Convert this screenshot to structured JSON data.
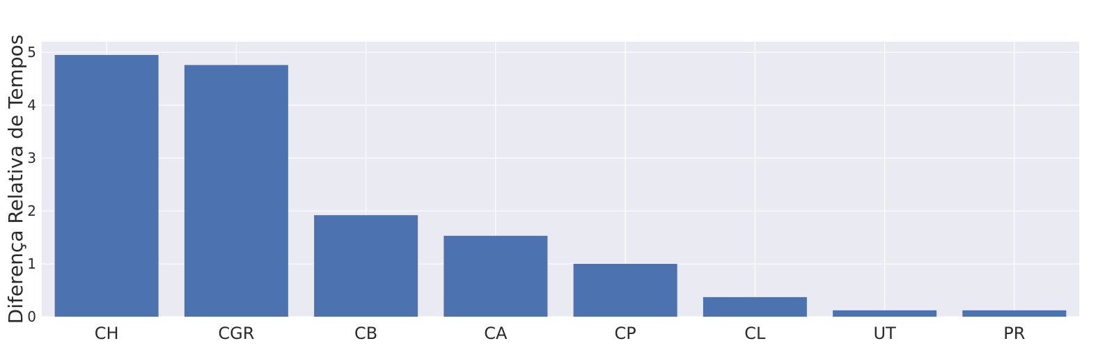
{
  "chart_data": {
    "type": "bar",
    "categories": [
      "CH",
      "CGR",
      "CB",
      "CA",
      "CP",
      "CL",
      "UT",
      "PR"
    ],
    "values": [
      4.95,
      4.76,
      1.92,
      1.53,
      1.0,
      0.37,
      0.12,
      0.12
    ],
    "title": "",
    "xlabel": "",
    "ylabel": "Diferença Relativa de Tempos",
    "ylim": [
      0,
      5.2
    ],
    "yticks": [
      "0",
      "1",
      "2",
      "3",
      "4",
      "5"
    ],
    "grid": true,
    "legend": "none",
    "colors": {
      "bar": "#4c72b0",
      "plot_background": "#eaeaf2",
      "grid": "#ffffff",
      "text": "#2a2a2a"
    }
  }
}
